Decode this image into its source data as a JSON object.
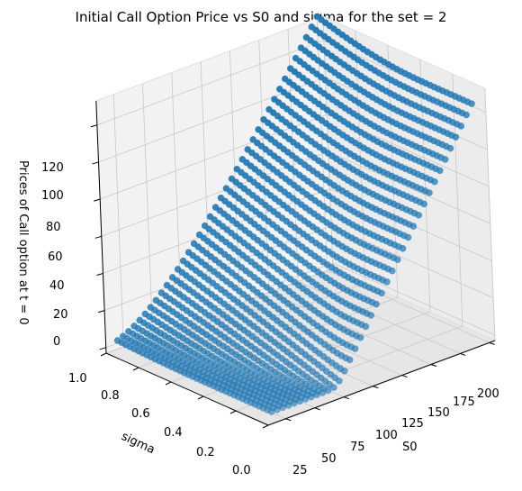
{
  "chart_data": {
    "type": "scatter3d",
    "title": "Initial Call Option Price vs S0 and sigma for the set = 2",
    "xlabel": "S0",
    "ylabel": "sigma",
    "zlabel": "Prices of Call option at t = 0",
    "x_ticks": [
      "25",
      "50",
      "75",
      "100",
      "125",
      "150",
      "175",
      "200"
    ],
    "y_ticks": [
      "0.0",
      "0.2",
      "0.4",
      "0.6",
      "0.8",
      "1.0"
    ],
    "z_ticks": [
      "0",
      "20",
      "40",
      "60",
      "80",
      "100",
      "120"
    ],
    "xlim": [
      10,
      205
    ],
    "ylim": [
      0.0,
      1.0
    ],
    "zlim": [
      -3,
      133
    ],
    "x_range": [
      20,
      200
    ],
    "y_range": [
      0.05,
      1.0
    ],
    "strike": 80,
    "marker_color": "#1f77b4",
    "pane_colors": [
      "#f2f2f2",
      "#ececec",
      "#e6e6e6"
    ],
    "grid": true
  }
}
